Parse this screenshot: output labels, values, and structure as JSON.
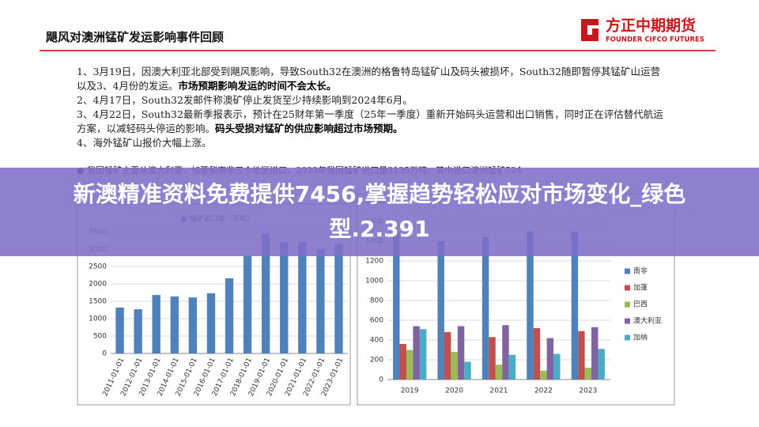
{
  "header": {
    "title": "飓风对澳洲锰矿发运影响事件回顾",
    "logo_name": "方正中期期货",
    "logo_en": "FOUNDER CIFCO FUTURES"
  },
  "bullets": [
    [
      {
        "text": "1、3月19日，因澳大利亚北部受到飓风影响，导致South32在澳洲的格鲁特岛锰矿山及码头被损坏，South32随即暂停其锰矿山运营以及3、4月份的发运。",
        "bold": false
      },
      {
        "text": "市场预期影响发运的时间不会太长。",
        "bold": true
      }
    ],
    [
      {
        "text": "2、4月17日，South32发邮件称澳矿停止发货至少持续影响到2024年6月。",
        "bold": false
      }
    ],
    [
      {
        "text": "3、4月22日，South32最新季报表示，预计在25财年第一季度（25年一季度）重新开始码头运营和出口销售，同时正在评估替代航运方案，以减轻码头停运的影响。",
        "bold": false
      },
      {
        "text": "码头受损对锰矿的供应影响超过市场预期。",
        "bold": true
      }
    ],
    [
      {
        "text": "4、海外锰矿山报价大幅上涨。",
        "bold": false
      }
    ]
  ],
  "note": "我国锰矿主要从澳大利亚、加蓬和南非三个地区进口，2023年我国锰矿进口量3135万吨，其中进口澳洲锰矿524",
  "banner": "新澳精准资料免费提供7456,掌握趋势轻松应对市场变化_绿色型.2.391",
  "chart_data": [
    {
      "type": "bar",
      "series": [
        {
          "name": "锰矿进口量（万吨）",
          "color": "#4f81bd",
          "values": [
            1320,
            1270,
            1680,
            1640,
            1610,
            1730,
            2160,
            2800,
            3450,
            3200,
            3200,
            3000,
            3135
          ]
        }
      ],
      "categories": [
        "2011-01-01",
        "2012-01-01",
        "2013-01-01",
        "2014-01-01",
        "2015-01-01",
        "2016-01-01",
        "2017-01-01",
        "2018-01-01",
        "2019-01-01",
        "2020-01-01",
        "2021-01-01",
        "2022-01-01",
        "2023-01-01"
      ],
      "ylim": [
        0,
        3500
      ],
      "yticks": [
        0,
        500,
        1000,
        1500,
        2000,
        2500,
        3000,
        3500
      ],
      "grid": true
    },
    {
      "type": "bar",
      "categories": [
        "2019",
        "2020",
        "2021",
        "2022",
        "2023"
      ],
      "series": [
        {
          "name": "南非",
          "color": "#4f81bd",
          "values": [
            1500,
            1400,
            1440,
            1500,
            1500
          ]
        },
        {
          "name": "加蓬",
          "color": "#c0504d",
          "values": [
            360,
            480,
            430,
            520,
            490
          ]
        },
        {
          "name": "巴西",
          "color": "#9bbb59",
          "values": [
            300,
            280,
            150,
            90,
            120
          ]
        },
        {
          "name": "澳大利亚",
          "color": "#8064a2",
          "values": [
            540,
            540,
            550,
            420,
            530
          ]
        },
        {
          "name": "加纳",
          "color": "#4bacc6",
          "values": [
            510,
            180,
            250,
            260,
            310
          ]
        }
      ],
      "ylim": [
        0,
        1800
      ],
      "yticks": [
        0,
        200,
        400,
        600,
        800,
        1000,
        1200,
        1400,
        1600,
        1800
      ],
      "grid": true
    }
  ]
}
